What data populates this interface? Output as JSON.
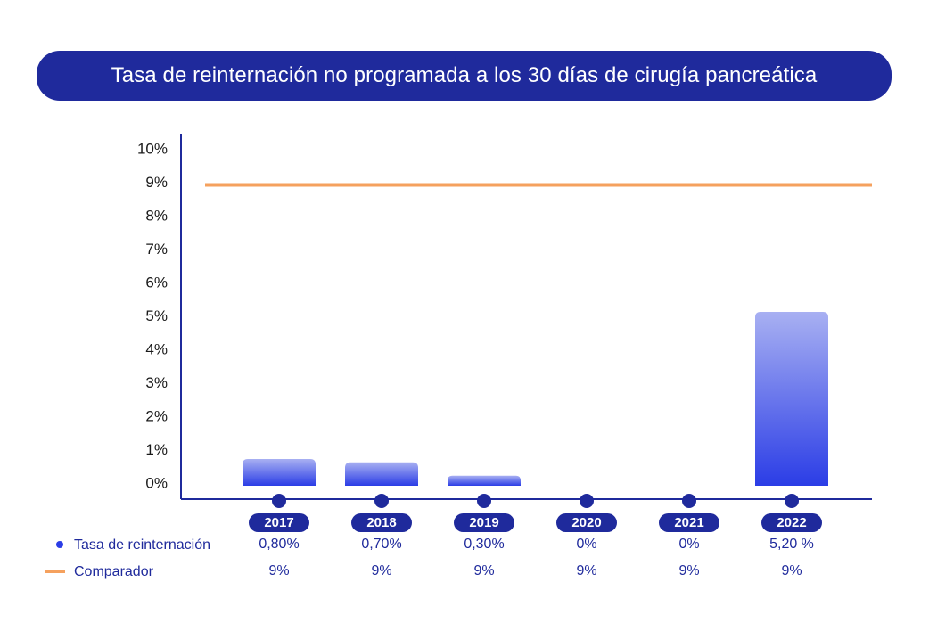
{
  "title": "Tasa de reinternación no programada a los 30 días de cirugía pancreática",
  "chart_data": {
    "type": "bar",
    "title": "Tasa de reinternación no programada a los 30 días de cirugía pancreática",
    "categories": [
      "2017",
      "2018",
      "2019",
      "2020",
      "2021",
      "2022"
    ],
    "series": [
      {
        "name": "Tasa de reinternación",
        "values": [
          0.8,
          0.7,
          0.3,
          0,
          0,
          5.2
        ],
        "labels": [
          "0,80%",
          "0,70%",
          "0,30%",
          "0%",
          "0%",
          "5,20 %"
        ]
      },
      {
        "name": "Comparador",
        "type": "line",
        "values": [
          9,
          9,
          9,
          9,
          9,
          9
        ],
        "labels": [
          "9%",
          "9%",
          "9%",
          "9%",
          "9%",
          "9%"
        ]
      }
    ],
    "yticks": [
      "0%",
      "1%",
      "2%",
      "3%",
      "4%",
      "5%",
      "6%",
      "7%",
      "8%",
      "9%",
      "10%"
    ],
    "ylim": [
      0,
      10
    ],
    "grid": false,
    "legend_position": "bottom-left",
    "colors": {
      "bar_top": "#a8b0f2",
      "bar_bottom": "#2b3de6",
      "comparator": "#f5a15e",
      "axis": "#1f2a9c",
      "marker": "#1f2a9c"
    }
  }
}
